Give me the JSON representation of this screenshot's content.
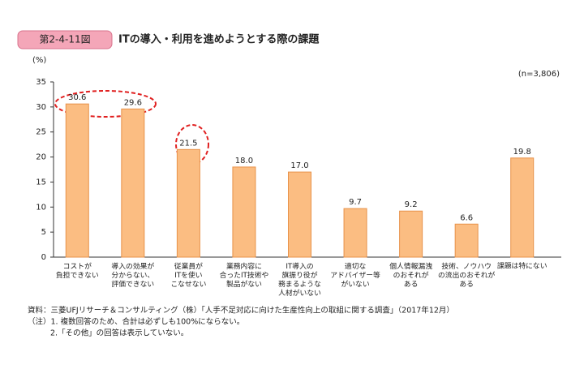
{
  "chart_data": {
    "type": "bar",
    "badge": "第2-4-11図",
    "title": "ITの導入・利用を進めようとする際の課題",
    "y_unit": "(%)",
    "sample_note": "(n=3,806)",
    "categories": [
      "コストが\n負担できない",
      "導入の効果が\n分からない、\n評価できない",
      "従業員が\nITを使い\nこなせない",
      "業務内容に\n合ったIT技術や\n製品がない",
      "IT導入の\n旗振り役が\n務まるような\n人材がいない",
      "適切な\nアドバイザー等\nがいない",
      "個人情報漏洩\nのおそれが\nある",
      "技術、ノウハウ\nの流出のおそれが\nある",
      "課題は特にない"
    ],
    "values": [
      30.6,
      29.6,
      21.5,
      18.0,
      17.0,
      9.7,
      9.2,
      6.6,
      19.8
    ],
    "value_labels": [
      "30.6",
      "29.6",
      "21.5",
      "18.0",
      "17.0",
      "9.7",
      "9.2",
      "6.6",
      "19.8"
    ],
    "color": "#fbbd82",
    "ylim": [
      0,
      35
    ],
    "yticks": [
      0,
      5,
      10,
      15,
      20,
      25,
      30,
      35
    ],
    "grid": false,
    "source": "資料：三菱UFJリサーチ＆コンサルティング（株）「人手不足対応に向けた生産性向上の取組に関する調査」（2017年12月）",
    "notes": [
      "（注）1. 複数回答のため、合計は必ずしも100%にならない。",
      "2.「その他」の回答は表示していない。"
    ]
  }
}
